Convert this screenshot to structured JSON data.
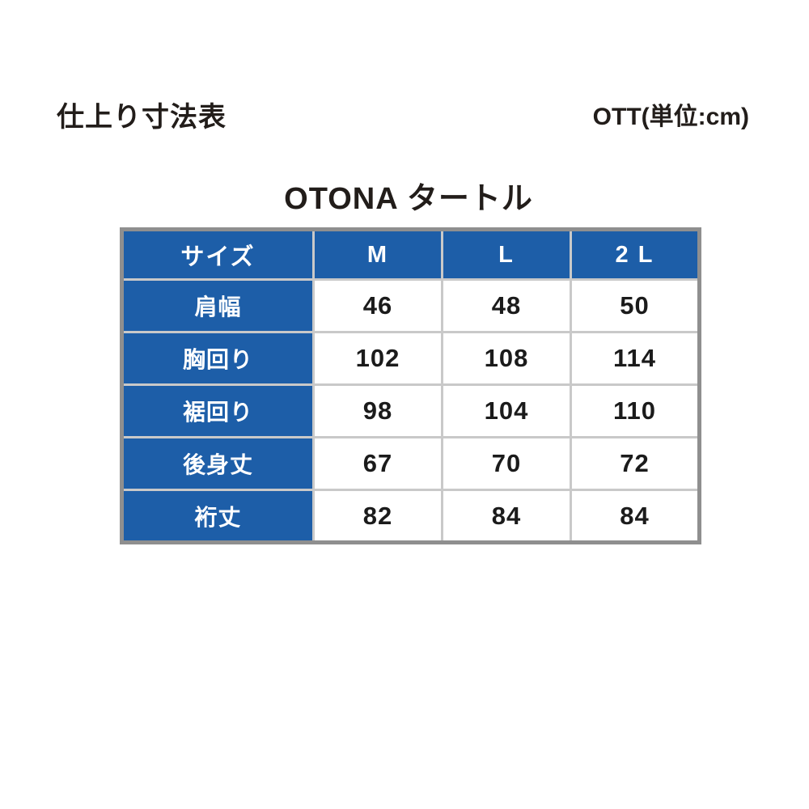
{
  "page": {
    "header_left": "仕上り寸法表",
    "header_right": "OTT(単位:cm)",
    "title": "OTONA タートル"
  },
  "size_chart": {
    "columns": [
      "サイズ",
      "M",
      "L",
      "2 L"
    ],
    "rows": [
      {
        "label": "肩幅",
        "values": [
          "46",
          "48",
          "50"
        ]
      },
      {
        "label": "胸回り",
        "values": [
          "102",
          "108",
          "114"
        ]
      },
      {
        "label": "裾回り",
        "values": [
          "98",
          "104",
          "110"
        ]
      },
      {
        "label": "後身丈",
        "values": [
          "67",
          "70",
          "72"
        ]
      },
      {
        "label": "裄丈",
        "values": [
          "82",
          "84",
          "84"
        ]
      }
    ],
    "unit": "cm",
    "colors": {
      "header_bg": "#1d5ea8",
      "header_text": "#ffffff",
      "cell_text": "#1b1b1b",
      "outer_border": "#8f8f8f",
      "inner_border": "#c9c9c9"
    }
  }
}
